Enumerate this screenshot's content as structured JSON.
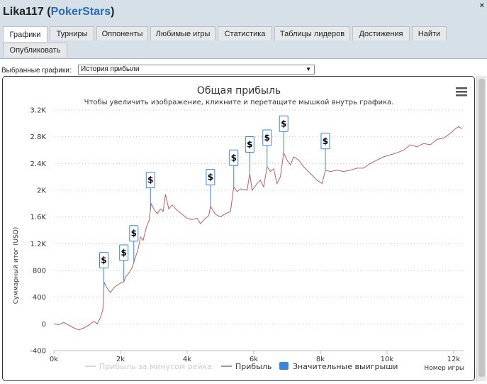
{
  "header": {
    "player": "Lika117",
    "site": "PokerStars",
    "close": "×"
  },
  "tabs": [
    {
      "label": "Графики",
      "active": true
    },
    {
      "label": "Турниры"
    },
    {
      "label": "Оппоненты"
    },
    {
      "label": "Любимые игры"
    },
    {
      "label": "Статистика"
    },
    {
      "label": "Таблицы лидеров"
    },
    {
      "label": "Достижения"
    },
    {
      "label": "Найти"
    },
    {
      "label": "Опубликовать"
    }
  ],
  "selector": {
    "label": "Выбранные графики:",
    "value": "История прибыли"
  },
  "colors": {
    "profit_line": "#b86060",
    "rake_line": "#cccccc",
    "big_win": "#3b86d8",
    "grid": "#c8c8c8"
  },
  "chart_data": {
    "type": "line",
    "title": "Общая прибыль",
    "subtitle": "Чтобы увеличить изображение, кликните и перетащите мышкой внутрь графика.",
    "xlabel": "Номер игры",
    "ylabel": "Суммарный итог (USD)",
    "xlim": [
      0,
      12300
    ],
    "ylim": [
      -400,
      3200
    ],
    "x_ticks": [
      0,
      2000,
      4000,
      6000,
      8000,
      10000,
      12000
    ],
    "x_tick_labels": [
      "0k",
      "2k",
      "4k",
      "6k",
      "8k",
      "10k",
      "12k"
    ],
    "y_ticks": [
      -400,
      0,
      400,
      800,
      1200,
      1600,
      2000,
      2400,
      2800,
      3200
    ],
    "y_tick_labels": [
      "-400",
      "0",
      "400",
      "800",
      "1.2K",
      "1.6K",
      "2K",
      "2.4K",
      "2.8K",
      "3.2K"
    ],
    "series": [
      {
        "name": "Прибыль за минусом рейка",
        "color": "#cccccc",
        "visible": false,
        "points": []
      },
      {
        "name": "Прибыль",
        "color": "#b86060",
        "points": [
          [
            0,
            0
          ],
          [
            150,
            -10
          ],
          [
            300,
            20
          ],
          [
            450,
            -20
          ],
          [
            600,
            -60
          ],
          [
            750,
            -90
          ],
          [
            900,
            -60
          ],
          [
            1050,
            -20
          ],
          [
            1200,
            40
          ],
          [
            1300,
            0
          ],
          [
            1400,
            100
          ],
          [
            1470,
            210
          ],
          [
            1510,
            620
          ],
          [
            1560,
            570
          ],
          [
            1620,
            520
          ],
          [
            1700,
            470
          ],
          [
            1800,
            540
          ],
          [
            1900,
            580
          ],
          [
            2000,
            610
          ],
          [
            2100,
            630
          ],
          [
            2150,
            700
          ],
          [
            2250,
            760
          ],
          [
            2350,
            840
          ],
          [
            2450,
            1000
          ],
          [
            2520,
            1100
          ],
          [
            2600,
            1300
          ],
          [
            2680,
            1250
          ],
          [
            2780,
            1450
          ],
          [
            2860,
            1550
          ],
          [
            2920,
            1800
          ],
          [
            3000,
            1720
          ],
          [
            3100,
            1650
          ],
          [
            3200,
            1720
          ],
          [
            3280,
            1680
          ],
          [
            3350,
            1940
          ],
          [
            3450,
            1720
          ],
          [
            3550,
            1780
          ],
          [
            3700,
            1700
          ],
          [
            3850,
            1640
          ],
          [
            4000,
            1580
          ],
          [
            4150,
            1560
          ],
          [
            4300,
            1580
          ],
          [
            4400,
            1500
          ],
          [
            4550,
            1580
          ],
          [
            4650,
            1620
          ],
          [
            4700,
            1760
          ],
          [
            4850,
            1640
          ],
          [
            5000,
            1600
          ],
          [
            5150,
            1650
          ],
          [
            5300,
            1680
          ],
          [
            5400,
            2050
          ],
          [
            5500,
            1980
          ],
          [
            5600,
            2020
          ],
          [
            5800,
            2000
          ],
          [
            5880,
            2250
          ],
          [
            5950,
            2000
          ],
          [
            6100,
            2100
          ],
          [
            6200,
            2150
          ],
          [
            6300,
            2050
          ],
          [
            6400,
            2350
          ],
          [
            6500,
            2280
          ],
          [
            6600,
            2320
          ],
          [
            6700,
            2100
          ],
          [
            6800,
            2200
          ],
          [
            6900,
            2560
          ],
          [
            7000,
            2450
          ],
          [
            7100,
            2380
          ],
          [
            7200,
            2500
          ],
          [
            7350,
            2450
          ],
          [
            7500,
            2350
          ],
          [
            7700,
            2250
          ],
          [
            7900,
            2150
          ],
          [
            8050,
            2100
          ],
          [
            8150,
            2300
          ],
          [
            8300,
            2280
          ],
          [
            8500,
            2300
          ],
          [
            8700,
            2280
          ],
          [
            8900,
            2300
          ],
          [
            9100,
            2330
          ],
          [
            9300,
            2330
          ],
          [
            9500,
            2400
          ],
          [
            9700,
            2450
          ],
          [
            9900,
            2500
          ],
          [
            10100,
            2530
          ],
          [
            10300,
            2560
          ],
          [
            10500,
            2600
          ],
          [
            10700,
            2680
          ],
          [
            10900,
            2650
          ],
          [
            11100,
            2700
          ],
          [
            11300,
            2680
          ],
          [
            11500,
            2760
          ],
          [
            11700,
            2780
          ],
          [
            11900,
            2850
          ],
          [
            12050,
            2920
          ],
          [
            12150,
            2950
          ],
          [
            12250,
            2920
          ]
        ]
      }
    ],
    "big_wins": {
      "name": "Значительные выигрыши",
      "color": "#3b86d8",
      "marker": "$",
      "x": [
        1500,
        2100,
        2400,
        2900,
        4700,
        5400,
        5880,
        6400,
        6900,
        8150
      ]
    }
  }
}
